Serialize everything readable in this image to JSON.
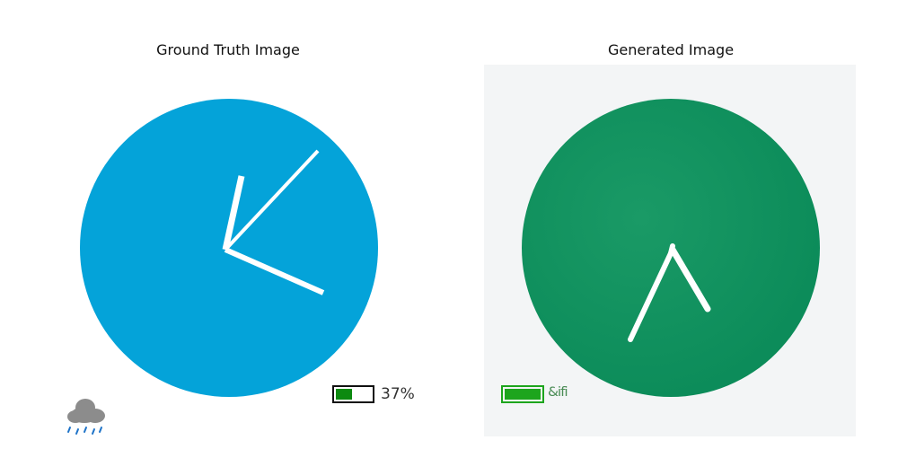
{
  "titles": {
    "left": "Ground Truth Image",
    "right": "Generated Image"
  },
  "left_panel": {
    "clock_face_color": "#04a3d9",
    "hand_color": "#ffffff",
    "weather_icon": "rain-cloud-icon",
    "weather_icon_color": "#8c8c8c",
    "rain_color": "#1e73c8",
    "battery": {
      "percent": 37,
      "label": "37%",
      "fill_color": "#0c8a10"
    }
  },
  "right_panel": {
    "clock_face_color": "#0b8f5e",
    "hand_color": "#ffffff",
    "battery": {
      "label": "&ifi",
      "fill_color": "#1da51d"
    }
  }
}
